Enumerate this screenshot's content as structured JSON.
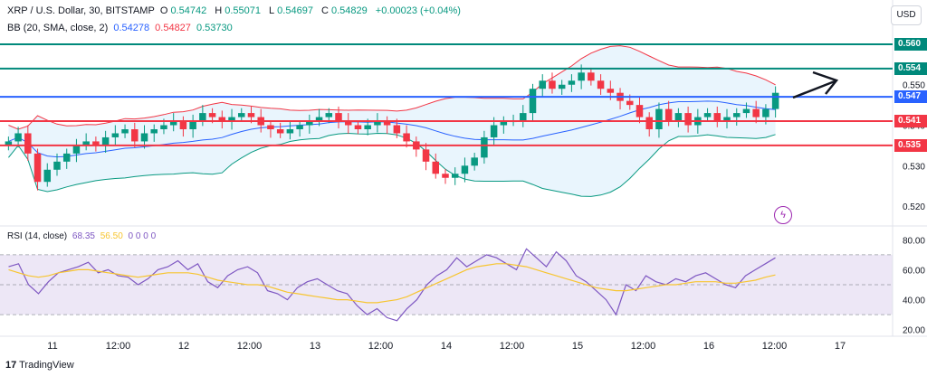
{
  "header": {
    "symbol_title": "XRP / U.S. Dollar, 30, BITSTAMP",
    "o_label": "O",
    "o_val": "0.54742",
    "h_label": "H",
    "h_val": "0.55071",
    "l_label": "L",
    "l_val": "0.54697",
    "c_label": "C",
    "c_val": "0.54829",
    "change": "+0.00023 (+0.04%)",
    "bb_label": "BB (20, SMA, close, 2)",
    "bb_basis": "0.54278",
    "bb_upper": "0.54827",
    "bb_lower": "0.53730",
    "currency": "USD"
  },
  "rsi_legend": {
    "label": "RSI (14, close)",
    "rsi": "68.35",
    "rsi_ma": "56.50",
    "extras": "0 0 0 0"
  },
  "brand": {
    "name": "TradingView"
  },
  "colors": {
    "up": "#089981",
    "down": "#f23645",
    "bb_basis": "#2962ff",
    "bb_upper": "#f23645",
    "bb_lower": "#089981",
    "bb_fill": "#e3f2fd",
    "rsi_line": "#7e57c2",
    "rsi_ma": "#f7c530",
    "rsi_band": "#ede7f6",
    "resistance": "#00897b",
    "support": "#f23645",
    "current": "#2962ff",
    "arrow": "#131722"
  },
  "price_tags": [
    {
      "label": "0.560",
      "color": "#00897b"
    },
    {
      "label": "0.554",
      "color": "#00897b"
    },
    {
      "label": "0.547",
      "color": "#2962ff"
    },
    {
      "label": "0.541",
      "color": "#f23645"
    },
    {
      "label": "0.535",
      "color": "#f23645"
    }
  ],
  "chart_data": [
    {
      "type": "candlestick",
      "title": "XRP / U.S. Dollar, 30, BITSTAMP",
      "x_ticks": [
        "11",
        "12:00",
        "12",
        "12:00",
        "13",
        "12:00",
        "14",
        "12:00",
        "15",
        "12:00",
        "16",
        "12:00",
        "17"
      ],
      "y_ticks": [
        "0.550",
        "0.540",
        "0.530",
        "0.520"
      ],
      "ylim": [
        0.516,
        0.562
      ],
      "horizontal_levels": [
        {
          "value": 0.56,
          "label": "0.560",
          "role": "resistance"
        },
        {
          "value": 0.554,
          "label": "0.554",
          "role": "resistance"
        },
        {
          "value": 0.547,
          "label": "0.547",
          "role": "current"
        },
        {
          "value": 0.541,
          "label": "0.541",
          "role": "support"
        },
        {
          "value": 0.535,
          "label": "0.535",
          "role": "support"
        }
      ],
      "close_series": [
        0.536,
        0.538,
        0.533,
        0.526,
        0.529,
        0.531,
        0.533,
        0.535,
        0.536,
        0.535,
        0.537,
        0.538,
        0.539,
        0.536,
        0.538,
        0.539,
        0.54,
        0.541,
        0.539,
        0.541,
        0.543,
        0.542,
        0.541,
        0.542,
        0.543,
        0.542,
        0.54,
        0.539,
        0.538,
        0.539,
        0.54,
        0.541,
        0.542,
        0.543,
        0.541,
        0.54,
        0.539,
        0.54,
        0.541,
        0.54,
        0.538,
        0.536,
        0.534,
        0.531,
        0.528,
        0.527,
        0.528,
        0.53,
        0.532,
        0.537,
        0.54,
        0.541,
        0.541,
        0.543,
        0.549,
        0.551,
        0.549,
        0.55,
        0.551,
        0.553,
        0.551,
        0.549,
        0.548,
        0.546,
        0.545,
        0.542,
        0.539,
        0.544,
        0.541,
        0.543,
        0.54,
        0.542,
        0.543,
        0.541,
        0.542,
        0.543,
        0.544,
        0.542,
        0.544,
        0.548
      ],
      "bollinger": {
        "period": 20,
        "std": 2,
        "basis_last": 0.54278,
        "upper_last": 0.54827,
        "lower_last": 0.5373
      }
    },
    {
      "type": "line",
      "title": "RSI (14, close)",
      "y_ticks": [
        "80.00",
        "60.00",
        "40.00",
        "20.00"
      ],
      "ylim": [
        18,
        82
      ],
      "bands": [
        70,
        50,
        30
      ],
      "series": [
        {
          "name": "RSI",
          "values": [
            62,
            64,
            50,
            44,
            52,
            58,
            60,
            62,
            65,
            58,
            60,
            56,
            55,
            50,
            54,
            60,
            62,
            66,
            60,
            64,
            52,
            48,
            56,
            60,
            62,
            58,
            46,
            44,
            40,
            48,
            52,
            54,
            50,
            46,
            44,
            36,
            30,
            34,
            28,
            26,
            34,
            40,
            50,
            56,
            60,
            68,
            62,
            66,
            70,
            68,
            64,
            60,
            74,
            68,
            62,
            72,
            66,
            56,
            52,
            46,
            40,
            30,
            50,
            46,
            56,
            52,
            50,
            54,
            52,
            56,
            58,
            54,
            50,
            48,
            56,
            60,
            64,
            68
          ]
        },
        {
          "name": "RSI-based MA",
          "values": [
            60,
            58,
            56,
            55,
            56,
            58,
            59,
            60,
            60,
            59,
            58,
            57,
            56,
            55,
            56,
            57,
            58,
            58,
            58,
            57,
            55,
            53,
            52,
            51,
            50,
            50,
            49,
            47,
            45,
            44,
            43,
            42,
            41,
            40,
            40,
            39,
            38,
            38,
            39,
            40,
            42,
            45,
            48,
            51,
            54,
            57,
            60,
            62,
            63,
            64,
            64,
            63,
            62,
            60,
            58,
            56,
            54,
            52,
            50,
            48,
            47,
            46,
            46,
            47,
            48,
            49,
            50,
            50,
            51,
            52,
            52,
            52,
            51,
            51,
            52,
            53,
            55,
            56.5
          ]
        }
      ]
    }
  ]
}
